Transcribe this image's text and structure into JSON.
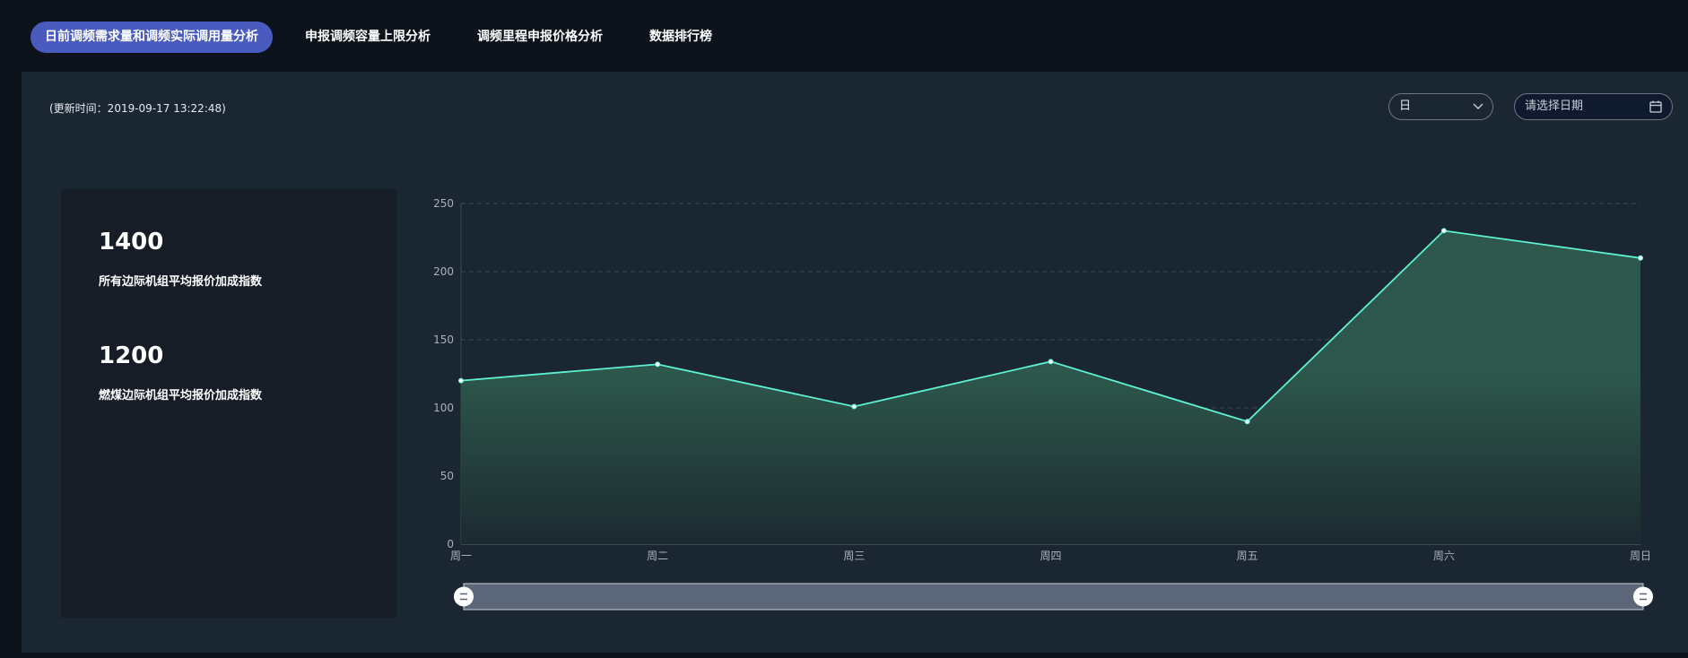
{
  "tabs": [
    {
      "label": "日前调频需求量和调频实际调用量分析",
      "active": true
    },
    {
      "label": "申报调频容量上限分析",
      "active": false
    },
    {
      "label": "调频里程申报价格分析",
      "active": false
    },
    {
      "label": "数据排行榜",
      "active": false
    }
  ],
  "update_time": "(更新时间：2019-09-17 13:22:48)",
  "period_select": {
    "value": "日"
  },
  "date_picker": {
    "placeholder": "请选择日期"
  },
  "stats": [
    {
      "value": "1400",
      "label": "所有边际机组平均报价加成指数"
    },
    {
      "value": "1200",
      "label": "燃煤边际机组平均报价加成指数"
    }
  ],
  "colors": {
    "accent": "#4a5bbf",
    "line": "#5ef2d2",
    "area_top": "#2e5a4c",
    "panel": "#1b2633"
  },
  "chart_data": {
    "type": "area",
    "categories": [
      "周一",
      "周二",
      "周三",
      "周四",
      "周五",
      "周六",
      "周日"
    ],
    "series": [
      {
        "values": [
          120,
          132,
          101,
          134,
          90,
          230,
          210
        ]
      }
    ],
    "ylim": [
      0,
      250
    ],
    "yticks": [
      0,
      50,
      100,
      150,
      200,
      250
    ],
    "grid": true,
    "datazoom_range": [
      0,
      100
    ]
  }
}
